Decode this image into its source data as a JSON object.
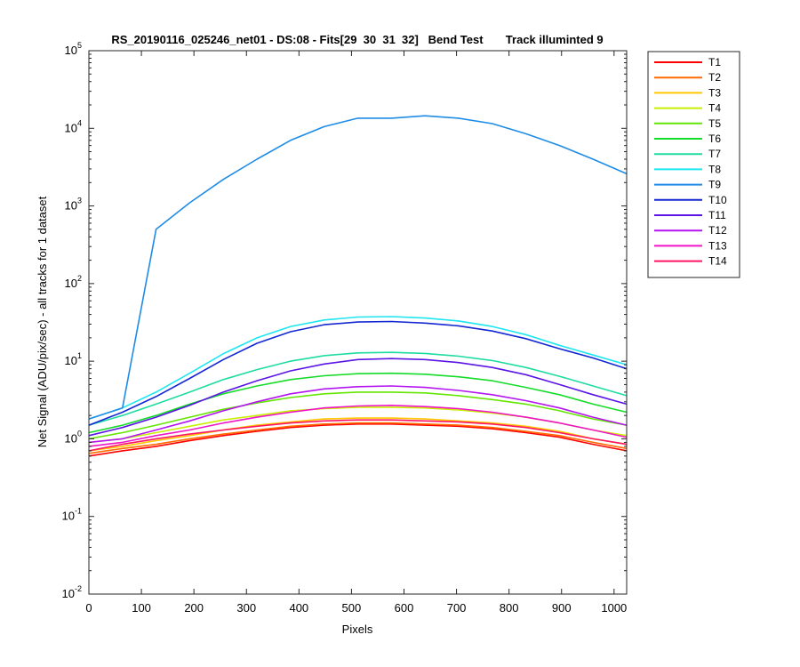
{
  "chart_data": {
    "type": "line",
    "title": "RS_20190116_025246_net01 - DS:08 - Fits[29  30  31  32]   Bend Test       Track illuminted 9",
    "xlabel": "Pixels",
    "ylabel": "Net Signal (ADU/pix/sec) - all tracks for 1 dataset",
    "xlim": [
      0,
      1024
    ],
    "ylim": [
      0.01,
      100000
    ],
    "yscale": "log",
    "x_ticks": [
      "0",
      "100",
      "200",
      "300",
      "400",
      "500",
      "600",
      "700",
      "800",
      "900",
      "1000"
    ],
    "y_ticks": [
      {
        "base": "10",
        "exp": "-2"
      },
      {
        "base": "10",
        "exp": "-1"
      },
      {
        "base": "10",
        "exp": "0"
      },
      {
        "base": "10",
        "exp": "1"
      },
      {
        "base": "10",
        "exp": "2"
      },
      {
        "base": "10",
        "exp": "3"
      },
      {
        "base": "10",
        "exp": "4"
      },
      {
        "base": "10",
        "exp": "5"
      }
    ],
    "legend_position": "outside-top-right",
    "x": [
      0,
      64,
      128,
      192,
      256,
      320,
      384,
      448,
      512,
      576,
      640,
      704,
      768,
      832,
      896,
      960,
      1024
    ],
    "series": [
      {
        "name": "T1",
        "color": "#ff0000",
        "values": [
          0.6,
          0.7,
          0.8,
          0.95,
          1.1,
          1.25,
          1.4,
          1.5,
          1.55,
          1.55,
          1.5,
          1.45,
          1.35,
          1.2,
          1.05,
          0.85,
          0.7
        ]
      },
      {
        "name": "T2",
        "color": "#ff6a00",
        "values": [
          0.65,
          0.75,
          0.85,
          1.0,
          1.15,
          1.3,
          1.45,
          1.55,
          1.6,
          1.6,
          1.55,
          1.5,
          1.4,
          1.25,
          1.1,
          0.9,
          0.75
        ]
      },
      {
        "name": "T3",
        "color": "#ffc800",
        "values": [
          0.7,
          0.8,
          0.95,
          1.1,
          1.3,
          1.5,
          1.65,
          1.8,
          1.85,
          1.85,
          1.8,
          1.7,
          1.6,
          1.45,
          1.25,
          1.0,
          0.85
        ]
      },
      {
        "name": "T4",
        "color": "#c8f000",
        "values": [
          0.9,
          1.0,
          1.2,
          1.45,
          1.75,
          2.0,
          2.3,
          2.45,
          2.55,
          2.55,
          2.5,
          2.35,
          2.15,
          1.9,
          1.6,
          1.3,
          1.1
        ]
      },
      {
        "name": "T5",
        "color": "#64e600",
        "values": [
          1.0,
          1.2,
          1.5,
          1.9,
          2.4,
          2.9,
          3.4,
          3.8,
          4.0,
          4.0,
          3.9,
          3.6,
          3.2,
          2.8,
          2.3,
          1.8,
          1.5
        ]
      },
      {
        "name": "T6",
        "color": "#14dc28",
        "values": [
          1.2,
          1.5,
          2.0,
          2.8,
          3.8,
          4.8,
          5.8,
          6.5,
          6.9,
          7.0,
          6.8,
          6.3,
          5.6,
          4.6,
          3.7,
          2.8,
          2.2
        ]
      },
      {
        "name": "T7",
        "color": "#1edca0",
        "values": [
          1.5,
          2.0,
          2.8,
          4.0,
          5.8,
          7.8,
          10.0,
          11.8,
          12.8,
          13.0,
          12.6,
          11.6,
          10.2,
          8.3,
          6.4,
          4.8,
          3.6
        ]
      },
      {
        "name": "T8",
        "color": "#1ee6f0",
        "values": [
          1.8,
          2.5,
          4.0,
          7.0,
          12.5,
          20.0,
          28.0,
          34.0,
          37.0,
          37.5,
          36.0,
          33.0,
          28.0,
          22.0,
          16.0,
          12.0,
          9.0
        ]
      },
      {
        "name": "T9",
        "color": "#1e8ce6",
        "values": [
          1.8,
          2.5,
          500,
          1100,
          2200,
          4000,
          7000,
          10500,
          13500,
          13500,
          14500,
          13500,
          11500,
          8500,
          6000,
          4000,
          2600
        ]
      },
      {
        "name": "T10",
        "color": "#1428d2",
        "values": [
          1.5,
          2.2,
          3.5,
          6.0,
          10.5,
          17.0,
          24.0,
          29.5,
          32.0,
          32.5,
          31.0,
          28.5,
          24.5,
          19.5,
          14.5,
          11.0,
          8.0
        ]
      },
      {
        "name": "T11",
        "color": "#5a14e6",
        "values": [
          1.1,
          1.4,
          1.9,
          2.7,
          4.0,
          5.6,
          7.5,
          9.2,
          10.5,
          10.8,
          10.5,
          9.6,
          8.3,
          6.7,
          5.0,
          3.7,
          2.8
        ]
      },
      {
        "name": "T12",
        "color": "#b414f0",
        "values": [
          0.9,
          1.0,
          1.3,
          1.7,
          2.3,
          3.0,
          3.8,
          4.4,
          4.7,
          4.8,
          4.6,
          4.2,
          3.7,
          3.1,
          2.5,
          1.9,
          1.5
        ]
      },
      {
        "name": "T13",
        "color": "#f014c8",
        "values": [
          0.8,
          0.9,
          1.1,
          1.3,
          1.6,
          1.9,
          2.2,
          2.5,
          2.65,
          2.7,
          2.6,
          2.45,
          2.2,
          1.9,
          1.6,
          1.3,
          1.05
        ]
      },
      {
        "name": "T14",
        "color": "#ff1464",
        "values": [
          0.7,
          0.85,
          1.0,
          1.15,
          1.3,
          1.45,
          1.6,
          1.7,
          1.75,
          1.75,
          1.7,
          1.65,
          1.55,
          1.4,
          1.2,
          1.0,
          0.85
        ]
      }
    ]
  }
}
